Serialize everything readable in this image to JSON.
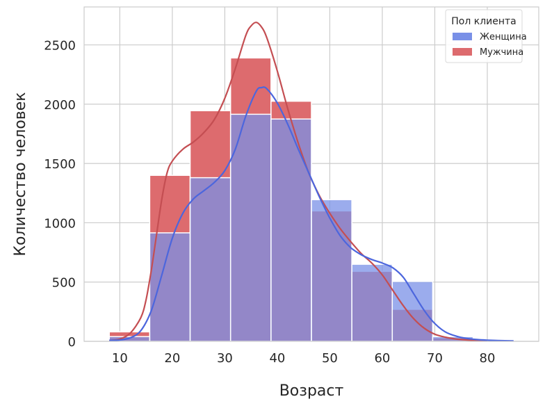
{
  "chart_data": {
    "type": "histogram",
    "xlabel": "Возраст",
    "ylabel": "Количество человек",
    "xlim": [
      3.2,
      89.8
    ],
    "ylim": [
      0,
      2820
    ],
    "xticks": [
      10,
      20,
      30,
      40,
      50,
      60,
      70,
      80
    ],
    "yticks": [
      0,
      500,
      1000,
      1500,
      2000,
      2500
    ],
    "bin_edges": [
      8.0,
      15.7,
      23.4,
      31.1,
      38.8,
      46.5,
      54.2,
      61.9,
      69.6,
      77.3,
      85.0
    ],
    "grid": true,
    "legend": {
      "title": "Пол клиента",
      "position": "top-right"
    },
    "series": [
      {
        "name": "Женщина",
        "color": "#4c66dd",
        "fill_color": "#7990e7",
        "counts": [
          40,
          915,
          1380,
          1915,
          1875,
          1195,
          650,
          505,
          40,
          5
        ],
        "kde": [
          [
            8,
            8
          ],
          [
            10,
            12
          ],
          [
            12,
            30
          ],
          [
            14,
            90
          ],
          [
            16,
            260
          ],
          [
            18,
            560
          ],
          [
            20,
            870
          ],
          [
            22,
            1080
          ],
          [
            24,
            1200
          ],
          [
            26,
            1270
          ],
          [
            28,
            1340
          ],
          [
            30,
            1440
          ],
          [
            32,
            1620
          ],
          [
            34,
            1900
          ],
          [
            36,
            2110
          ],
          [
            37,
            2140
          ],
          [
            38,
            2130
          ],
          [
            40,
            2010
          ],
          [
            42,
            1830
          ],
          [
            44,
            1620
          ],
          [
            46,
            1420
          ],
          [
            48,
            1220
          ],
          [
            50,
            1040
          ],
          [
            52,
            890
          ],
          [
            54,
            790
          ],
          [
            56,
            730
          ],
          [
            58,
            690
          ],
          [
            60,
            660
          ],
          [
            62,
            620
          ],
          [
            64,
            540
          ],
          [
            66,
            400
          ],
          [
            68,
            260
          ],
          [
            70,
            150
          ],
          [
            72,
            80
          ],
          [
            74,
            45
          ],
          [
            76,
            25
          ],
          [
            78,
            15
          ],
          [
            80,
            10
          ],
          [
            82,
            7
          ],
          [
            85,
            4
          ]
        ]
      },
      {
        "name": "Мужчина",
        "color": "#c44e52",
        "fill_color": "#dd6b6e",
        "counts": [
          80,
          1400,
          1945,
          2390,
          2025,
          1100,
          590,
          270,
          30,
          0
        ],
        "kde": [
          [
            8,
            8
          ],
          [
            10,
            20
          ],
          [
            12,
            70
          ],
          [
            14,
            200
          ],
          [
            15,
            350
          ],
          [
            16,
            600
          ],
          [
            17,
            900
          ],
          [
            18,
            1200
          ],
          [
            19,
            1420
          ],
          [
            20,
            1520
          ],
          [
            22,
            1620
          ],
          [
            24,
            1680
          ],
          [
            26,
            1760
          ],
          [
            28,
            1870
          ],
          [
            30,
            2050
          ],
          [
            32,
            2300
          ],
          [
            34,
            2580
          ],
          [
            35,
            2660
          ],
          [
            36,
            2690
          ],
          [
            37,
            2650
          ],
          [
            38,
            2560
          ],
          [
            40,
            2280
          ],
          [
            42,
            1960
          ],
          [
            44,
            1670
          ],
          [
            46,
            1420
          ],
          [
            48,
            1230
          ],
          [
            50,
            1080
          ],
          [
            52,
            950
          ],
          [
            54,
            840
          ],
          [
            56,
            740
          ],
          [
            58,
            660
          ],
          [
            60,
            560
          ],
          [
            62,
            430
          ],
          [
            64,
            300
          ],
          [
            66,
            190
          ],
          [
            68,
            110
          ],
          [
            70,
            60
          ],
          [
            72,
            35
          ],
          [
            74,
            20
          ],
          [
            76,
            12
          ],
          [
            78,
            8
          ],
          [
            80,
            5
          ]
        ]
      }
    ]
  }
}
